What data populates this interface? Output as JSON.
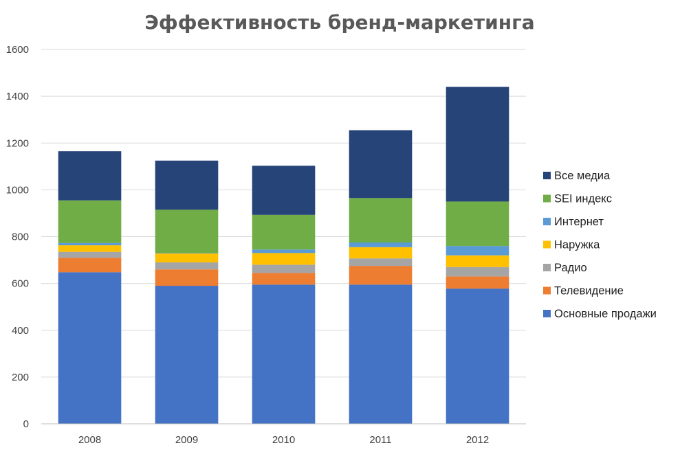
{
  "chart_data": {
    "type": "bar",
    "stacked": true,
    "title": "Эффективность бренд-маркетинга",
    "xlabel": "",
    "ylabel": "",
    "ylim": [
      0,
      1600
    ],
    "yticks": [
      0,
      200,
      400,
      600,
      800,
      1000,
      1200,
      1400,
      1600
    ],
    "grid": true,
    "legend_position": "right",
    "categories": [
      "2008",
      "2009",
      "2010",
      "2011",
      "2012"
    ],
    "series": [
      {
        "name": "Основные продажи",
        "color": "#4472C4",
        "values": [
          648,
          590,
          595,
          595,
          578
        ]
      },
      {
        "name": "Телевидение",
        "color": "#ED7D31",
        "values": [
          62,
          70,
          50,
          80,
          52
        ]
      },
      {
        "name": "Радио",
        "color": "#A5A5A5",
        "values": [
          25,
          30,
          35,
          32,
          40
        ]
      },
      {
        "name": "Наружка",
        "color": "#FFC000",
        "values": [
          28,
          38,
          50,
          48,
          50
        ]
      },
      {
        "name": "Интернет",
        "color": "#5B9BD5",
        "values": [
          10,
          2,
          15,
          20,
          40
        ]
      },
      {
        "name": "SEI индекс",
        "color": "#70AD47",
        "values": [
          182,
          185,
          148,
          190,
          190
        ]
      },
      {
        "name": "Все медиа",
        "color": "#264478",
        "values": [
          210,
          210,
          210,
          290,
          490
        ]
      }
    ]
  }
}
